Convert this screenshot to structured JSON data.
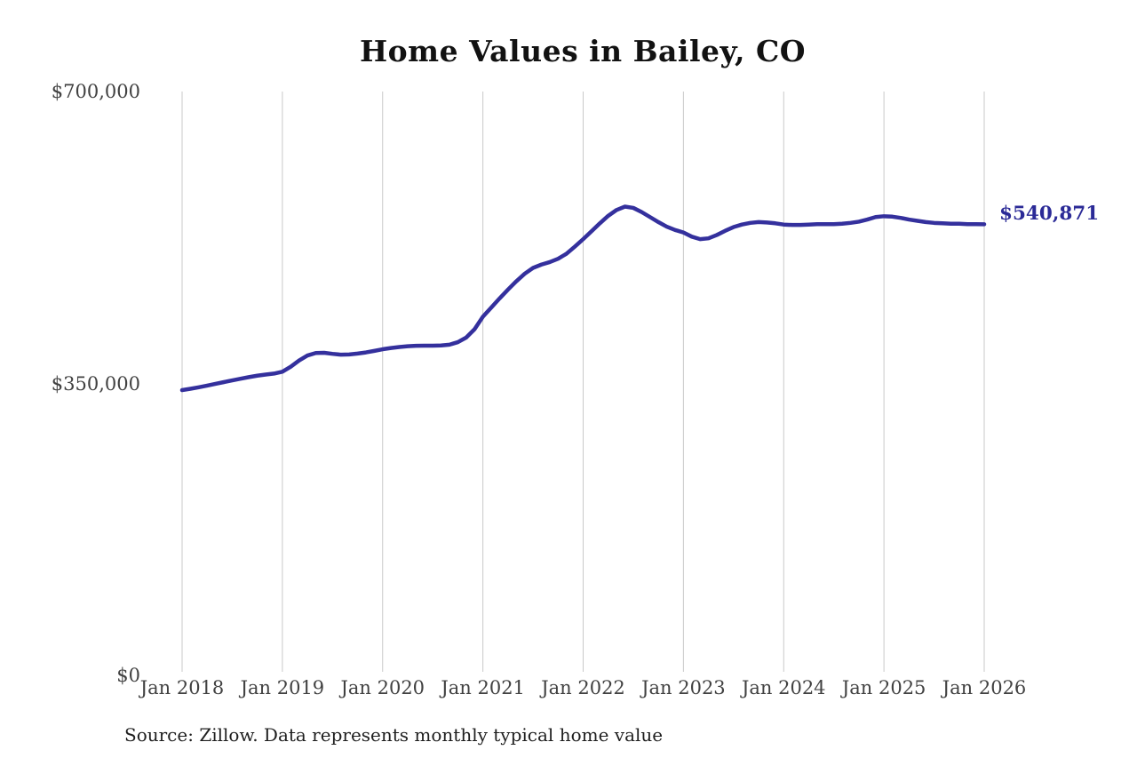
{
  "page": {
    "background": "#ffffff"
  },
  "chart_data": {
    "type": "line",
    "title": "Home Values in Bailey, CO",
    "source_note": "Source: Zillow. Data represents monthly typical home value",
    "end_label": "$540,871",
    "end_value": 540871,
    "line_color": "#34309d",
    "end_label_color": "#2b2a97",
    "grid_color": "#c9c9c9",
    "axis_label_color": "#414141",
    "legend": "none",
    "grid": "vertical-only",
    "ylim": [
      0,
      700000
    ],
    "y_ticks": [
      {
        "label": "$0",
        "value": 0
      },
      {
        "label": "$350,000",
        "value": 350000
      },
      {
        "label": "$700,000",
        "value": 700000
      }
    ],
    "x_tick_labels": [
      "Jan 2018",
      "Jan 2019",
      "Jan 2020",
      "Jan 2021",
      "Jan 2022",
      "Jan 2023",
      "Jan 2024",
      "Jan 2025",
      "Jan 2026"
    ],
    "x_unit": "month",
    "x_start": "2018-01",
    "x_end": "2026-01",
    "series": [
      {
        "name": "Monthly typical home value",
        "values": [
          342000,
          343600,
          345400,
          347400,
          349500,
          351600,
          353700,
          355700,
          357600,
          359300,
          360700,
          361800,
          364000,
          370000,
          377500,
          383500,
          386500,
          386800,
          385500,
          384500,
          384800,
          385800,
          387200,
          389000,
          391000,
          392500,
          393700,
          394600,
          395100,
          395300,
          395300,
          395500,
          396500,
          399500,
          405000,
          415000,
          430000,
          441000,
          452000,
          462500,
          472500,
          481500,
          488500,
          492500,
          495500,
          499500,
          505500,
          514000,
          523000,
          532500,
          542000,
          551000,
          558000,
          562000,
          560500,
          555500,
          549500,
          543500,
          538000,
          534000,
          531000,
          526000,
          523000,
          524000,
          528000,
          533000,
          537500,
          540500,
          542500,
          543500,
          543000,
          542000,
          540500,
          540000,
          540000,
          540500,
          541000,
          541000,
          541000,
          541500,
          542500,
          544000,
          546500,
          549500,
          550500,
          550000,
          548500,
          546500,
          545000,
          543500,
          542500,
          542000,
          541500,
          541500,
          541000,
          541000,
          540871
        ]
      }
    ]
  }
}
